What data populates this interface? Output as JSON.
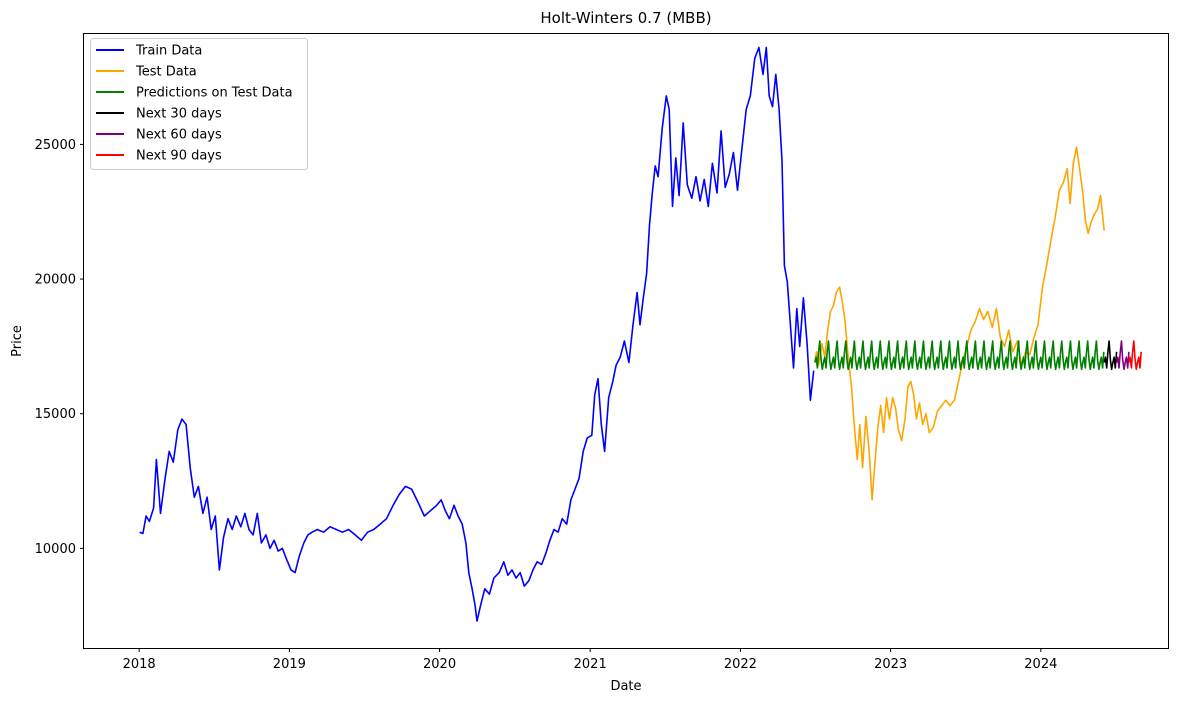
{
  "chart_data": {
    "type": "line",
    "title": "Holt-Winters 0.7 (MBB)",
    "xlabel": "Date",
    "ylabel": "Price",
    "xlim": [
      "2017-08-20",
      "2024-11-05"
    ],
    "ylim": [
      6300,
      29100
    ],
    "x_ticks": [
      "2018-01-01",
      "2019-01-01",
      "2020-01-01",
      "2021-01-01",
      "2022-01-01",
      "2023-01-01",
      "2024-01-01"
    ],
    "x_tick_labels": [
      "2018",
      "2019",
      "2020",
      "2021",
      "2022",
      "2023",
      "2024"
    ],
    "y_ticks": [
      10000,
      15000,
      20000,
      25000
    ],
    "y_tick_labels": [
      "10000",
      "15000",
      "20000",
      "25000"
    ],
    "grid": false,
    "legend_position": "top-left",
    "series": [
      {
        "name": "Train Data",
        "color": "#0000ff",
        "points": [
          [
            "2018-01-02",
            10600
          ],
          [
            "2018-01-10",
            10550
          ],
          [
            "2018-01-18",
            11200
          ],
          [
            "2018-01-26",
            11000
          ],
          [
            "2018-02-05",
            11500
          ],
          [
            "2018-02-12",
            13300
          ],
          [
            "2018-02-22",
            11300
          ],
          [
            "2018-03-05",
            12600
          ],
          [
            "2018-03-15",
            13600
          ],
          [
            "2018-03-25",
            13200
          ],
          [
            "2018-04-05",
            14400
          ],
          [
            "2018-04-15",
            14800
          ],
          [
            "2018-04-25",
            14600
          ],
          [
            "2018-05-05",
            13000
          ],
          [
            "2018-05-15",
            11900
          ],
          [
            "2018-05-25",
            12300
          ],
          [
            "2018-06-05",
            11300
          ],
          [
            "2018-06-15",
            11900
          ],
          [
            "2018-06-25",
            10700
          ],
          [
            "2018-07-05",
            11200
          ],
          [
            "2018-07-15",
            9200
          ],
          [
            "2018-07-25",
            10400
          ],
          [
            "2018-08-05",
            11100
          ],
          [
            "2018-08-15",
            10700
          ],
          [
            "2018-08-25",
            11200
          ],
          [
            "2018-09-05",
            10800
          ],
          [
            "2018-09-15",
            11300
          ],
          [
            "2018-09-25",
            10700
          ],
          [
            "2018-10-05",
            10500
          ],
          [
            "2018-10-15",
            11300
          ],
          [
            "2018-10-25",
            10200
          ],
          [
            "2018-11-05",
            10500
          ],
          [
            "2018-11-15",
            10000
          ],
          [
            "2018-11-25",
            10300
          ],
          [
            "2018-12-05",
            9900
          ],
          [
            "2018-12-15",
            10000
          ],
          [
            "2018-12-25",
            9600
          ],
          [
            "2019-01-05",
            9200
          ],
          [
            "2019-01-15",
            9100
          ],
          [
            "2019-01-25",
            9700
          ],
          [
            "2019-02-05",
            10200
          ],
          [
            "2019-02-15",
            10500
          ],
          [
            "2019-02-25",
            10600
          ],
          [
            "2019-03-10",
            10700
          ],
          [
            "2019-03-25",
            10600
          ],
          [
            "2019-04-10",
            10800
          ],
          [
            "2019-04-25",
            10700
          ],
          [
            "2019-05-10",
            10600
          ],
          [
            "2019-05-25",
            10700
          ],
          [
            "2019-06-10",
            10500
          ],
          [
            "2019-06-25",
            10300
          ],
          [
            "2019-07-10",
            10600
          ],
          [
            "2019-07-25",
            10700
          ],
          [
            "2019-08-10",
            10900
          ],
          [
            "2019-08-25",
            11100
          ],
          [
            "2019-09-10",
            11600
          ],
          [
            "2019-09-25",
            12000
          ],
          [
            "2019-10-10",
            12300
          ],
          [
            "2019-10-25",
            12200
          ],
          [
            "2019-11-10",
            11700
          ],
          [
            "2019-11-25",
            11200
          ],
          [
            "2019-12-10",
            11400
          ],
          [
            "2019-12-25",
            11600
          ],
          [
            "2020-01-05",
            11800
          ],
          [
            "2020-01-15",
            11400
          ],
          [
            "2020-01-25",
            11100
          ],
          [
            "2020-02-05",
            11600
          ],
          [
            "2020-02-15",
            11200
          ],
          [
            "2020-02-25",
            10900
          ],
          [
            "2020-03-05",
            10200
          ],
          [
            "2020-03-12",
            9100
          ],
          [
            "2020-03-20",
            8500
          ],
          [
            "2020-03-27",
            7900
          ],
          [
            "2020-04-01",
            7300
          ],
          [
            "2020-04-10",
            7900
          ],
          [
            "2020-04-20",
            8500
          ],
          [
            "2020-05-01",
            8300
          ],
          [
            "2020-05-12",
            8900
          ],
          [
            "2020-05-25",
            9100
          ],
          [
            "2020-06-05",
            9500
          ],
          [
            "2020-06-15",
            9000
          ],
          [
            "2020-06-25",
            9200
          ],
          [
            "2020-07-05",
            8900
          ],
          [
            "2020-07-15",
            9100
          ],
          [
            "2020-07-25",
            8600
          ],
          [
            "2020-08-05",
            8800
          ],
          [
            "2020-08-15",
            9200
          ],
          [
            "2020-08-25",
            9500
          ],
          [
            "2020-09-05",
            9400
          ],
          [
            "2020-09-15",
            9800
          ],
          [
            "2020-09-25",
            10300
          ],
          [
            "2020-10-05",
            10700
          ],
          [
            "2020-10-15",
            10600
          ],
          [
            "2020-10-25",
            11100
          ],
          [
            "2020-11-05",
            10900
          ],
          [
            "2020-11-15",
            11800
          ],
          [
            "2020-11-25",
            12200
          ],
          [
            "2020-12-05",
            12600
          ],
          [
            "2020-12-15",
            13600
          ],
          [
            "2020-12-25",
            14100
          ],
          [
            "2021-01-05",
            14200
          ],
          [
            "2021-01-12",
            15700
          ],
          [
            "2021-01-20",
            16300
          ],
          [
            "2021-01-28",
            14600
          ],
          [
            "2021-02-05",
            13600
          ],
          [
            "2021-02-15",
            15600
          ],
          [
            "2021-02-25",
            16200
          ],
          [
            "2021-03-05",
            16800
          ],
          [
            "2021-03-15",
            17100
          ],
          [
            "2021-03-25",
            17700
          ],
          [
            "2021-04-05",
            16900
          ],
          [
            "2021-04-15",
            18300
          ],
          [
            "2021-04-25",
            19500
          ],
          [
            "2021-05-02",
            18300
          ],
          [
            "2021-05-10",
            19300
          ],
          [
            "2021-05-18",
            20200
          ],
          [
            "2021-05-25",
            22000
          ],
          [
            "2021-06-01",
            23200
          ],
          [
            "2021-06-08",
            24200
          ],
          [
            "2021-06-15",
            23800
          ],
          [
            "2021-06-25",
            25600
          ],
          [
            "2021-07-05",
            26800
          ],
          [
            "2021-07-12",
            26300
          ],
          [
            "2021-07-20",
            22700
          ],
          [
            "2021-07-28",
            24500
          ],
          [
            "2021-08-05",
            23100
          ],
          [
            "2021-08-15",
            25800
          ],
          [
            "2021-08-25",
            23500
          ],
          [
            "2021-09-05",
            23000
          ],
          [
            "2021-09-15",
            23800
          ],
          [
            "2021-09-25",
            22900
          ],
          [
            "2021-10-05",
            23700
          ],
          [
            "2021-10-15",
            22700
          ],
          [
            "2021-10-25",
            24300
          ],
          [
            "2021-11-05",
            23200
          ],
          [
            "2021-11-15",
            25500
          ],
          [
            "2021-11-25",
            23400
          ],
          [
            "2021-12-05",
            23900
          ],
          [
            "2021-12-15",
            24700
          ],
          [
            "2021-12-25",
            23300
          ],
          [
            "2022-01-05",
            24900
          ],
          [
            "2022-01-15",
            26300
          ],
          [
            "2022-01-25",
            26800
          ],
          [
            "2022-02-05",
            28200
          ],
          [
            "2022-02-15",
            28600
          ],
          [
            "2022-02-25",
            27600
          ],
          [
            "2022-03-05",
            28600
          ],
          [
            "2022-03-12",
            26800
          ],
          [
            "2022-03-20",
            26400
          ],
          [
            "2022-03-28",
            27600
          ],
          [
            "2022-04-05",
            26300
          ],
          [
            "2022-04-12",
            24400
          ],
          [
            "2022-04-18",
            20500
          ],
          [
            "2022-04-25",
            19900
          ],
          [
            "2022-05-02",
            18400
          ],
          [
            "2022-05-10",
            16700
          ],
          [
            "2022-05-18",
            18900
          ],
          [
            "2022-05-25",
            17500
          ],
          [
            "2022-06-03",
            19300
          ],
          [
            "2022-06-12",
            17600
          ],
          [
            "2022-06-20",
            15500
          ],
          [
            "2022-06-28",
            16600
          ]
        ]
      },
      {
        "name": "Test Data",
        "color": "#ffa500",
        "points": [
          [
            "2022-07-01",
            16900
          ],
          [
            "2022-07-05",
            17300
          ],
          [
            "2022-07-10",
            16800
          ],
          [
            "2022-07-18",
            17600
          ],
          [
            "2022-07-25",
            17100
          ],
          [
            "2022-08-01",
            18100
          ],
          [
            "2022-08-08",
            18800
          ],
          [
            "2022-08-15",
            19000
          ],
          [
            "2022-08-22",
            19500
          ],
          [
            "2022-08-30",
            19700
          ],
          [
            "2022-09-05",
            19200
          ],
          [
            "2022-09-12",
            18500
          ],
          [
            "2022-09-20",
            17100
          ],
          [
            "2022-09-28",
            16000
          ],
          [
            "2022-10-05",
            14500
          ],
          [
            "2022-10-12",
            13300
          ],
          [
            "2022-10-18",
            14600
          ],
          [
            "2022-10-25",
            13000
          ],
          [
            "2022-11-02",
            14900
          ],
          [
            "2022-11-10",
            13600
          ],
          [
            "2022-11-17",
            11800
          ],
          [
            "2022-11-24",
            13200
          ],
          [
            "2022-12-01",
            14500
          ],
          [
            "2022-12-08",
            15300
          ],
          [
            "2022-12-15",
            14300
          ],
          [
            "2022-12-22",
            15600
          ],
          [
            "2022-12-29",
            14800
          ],
          [
            "2023-01-06",
            15600
          ],
          [
            "2023-01-13",
            15200
          ],
          [
            "2023-01-20",
            14400
          ],
          [
            "2023-01-28",
            14000
          ],
          [
            "2023-02-05",
            14800
          ],
          [
            "2023-02-12",
            16000
          ],
          [
            "2023-02-19",
            16200
          ],
          [
            "2023-02-26",
            15700
          ],
          [
            "2023-03-05",
            14800
          ],
          [
            "2023-03-12",
            15400
          ],
          [
            "2023-03-20",
            14600
          ],
          [
            "2023-03-28",
            15000
          ],
          [
            "2023-04-05",
            14300
          ],
          [
            "2023-04-15",
            14500
          ],
          [
            "2023-04-25",
            15100
          ],
          [
            "2023-05-05",
            15300
          ],
          [
            "2023-05-15",
            15500
          ],
          [
            "2023-05-25",
            15300
          ],
          [
            "2023-06-05",
            15500
          ],
          [
            "2023-06-15",
            16200
          ],
          [
            "2023-06-25",
            16900
          ],
          [
            "2023-07-05",
            17500
          ],
          [
            "2023-07-15",
            18100
          ],
          [
            "2023-07-25",
            18400
          ],
          [
            "2023-08-05",
            18900
          ],
          [
            "2023-08-15",
            18500
          ],
          [
            "2023-08-25",
            18800
          ],
          [
            "2023-09-05",
            18200
          ],
          [
            "2023-09-15",
            18900
          ],
          [
            "2023-09-25",
            17800
          ],
          [
            "2023-10-05",
            17500
          ],
          [
            "2023-10-15",
            18100
          ],
          [
            "2023-10-25",
            17300
          ],
          [
            "2023-11-05",
            17700
          ],
          [
            "2023-11-15",
            16800
          ],
          [
            "2023-11-25",
            17300
          ],
          [
            "2023-12-05",
            17200
          ],
          [
            "2023-12-15",
            17800
          ],
          [
            "2023-12-25",
            18300
          ],
          [
            "2024-01-05",
            19700
          ],
          [
            "2024-01-15",
            20500
          ],
          [
            "2024-01-25",
            21400
          ],
          [
            "2024-02-05",
            22300
          ],
          [
            "2024-02-15",
            23300
          ],
          [
            "2024-02-25",
            23600
          ],
          [
            "2024-03-05",
            24100
          ],
          [
            "2024-03-12",
            22800
          ],
          [
            "2024-03-20",
            24300
          ],
          [
            "2024-03-28",
            24900
          ],
          [
            "2024-04-05",
            24000
          ],
          [
            "2024-04-12",
            23200
          ],
          [
            "2024-04-18",
            22200
          ],
          [
            "2024-04-25",
            21700
          ],
          [
            "2024-05-02",
            22100
          ],
          [
            "2024-05-10",
            22400
          ],
          [
            "2024-05-18",
            22600
          ],
          [
            "2024-05-25",
            23100
          ],
          [
            "2024-06-03",
            21800
          ]
        ]
      },
      {
        "name": "Predictions on Test Data",
        "color": "#008000",
        "periodic": true,
        "start": "2022-07-01",
        "end": "2024-06-03",
        "period_days": 21,
        "pattern": [
          16900,
          17100,
          16700,
          17300,
          17700,
          17000,
          16650
        ]
      },
      {
        "name": "Next 30 days",
        "color": "#000000",
        "periodic": true,
        "start": "2024-06-03",
        "end": "2024-07-03",
        "period_days": 21,
        "pattern": [
          16900,
          17100,
          16700,
          17300,
          17700,
          17000,
          16650
        ]
      },
      {
        "name": "Next 60 days",
        "color": "#800080",
        "periodic": true,
        "start": "2024-07-03",
        "end": "2024-08-02",
        "period_days": 21,
        "pattern": [
          16900,
          17100,
          16700,
          17300,
          17700,
          17000,
          16650
        ]
      },
      {
        "name": "Next 90 days",
        "color": "#ff0000",
        "periodic": true,
        "start": "2024-08-02",
        "end": "2024-09-01",
        "period_days": 21,
        "pattern": [
          16900,
          17100,
          16700,
          17300,
          17700,
          17000,
          16650
        ]
      }
    ]
  }
}
